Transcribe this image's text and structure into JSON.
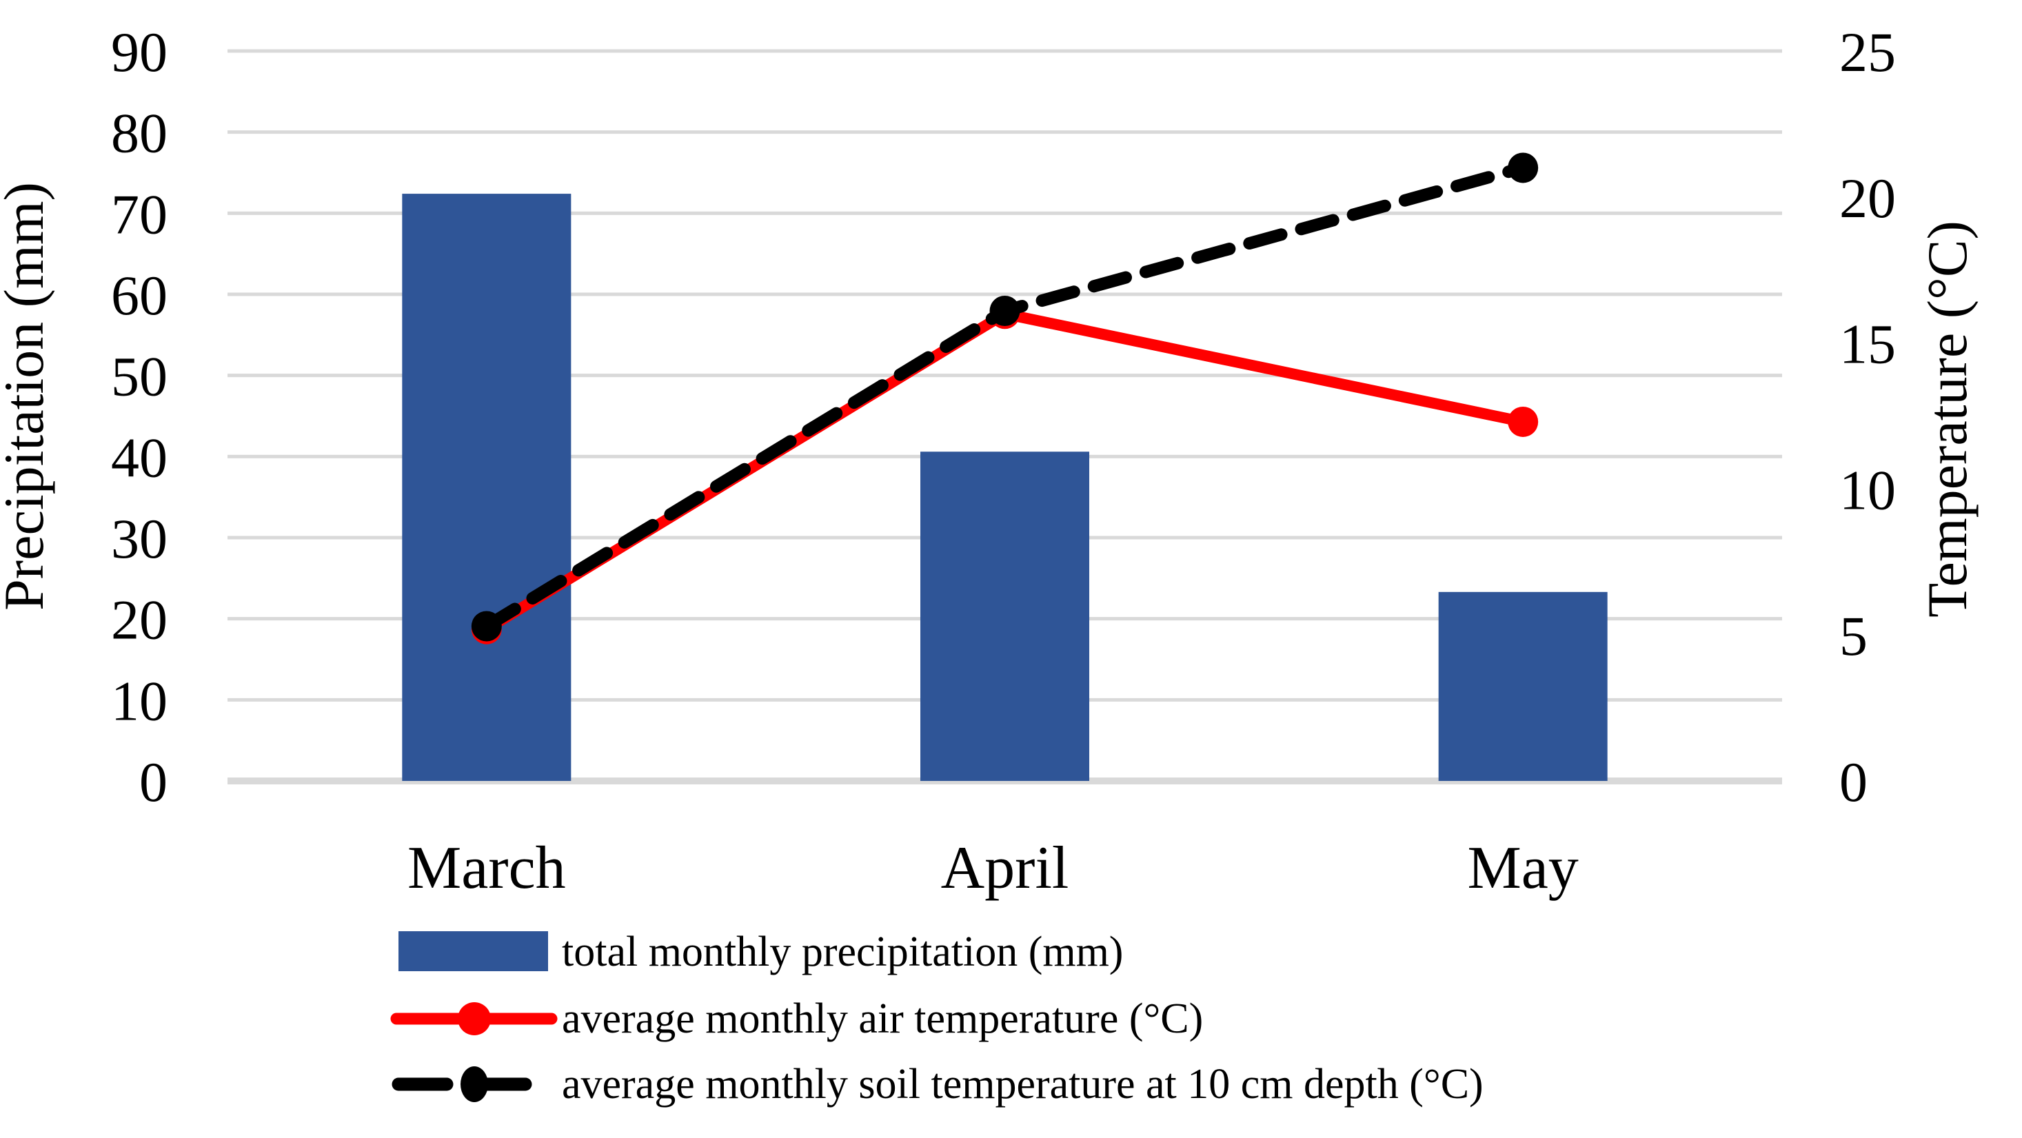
{
  "chart_data": {
    "type": "bar",
    "subtype": "bar-line-combo",
    "categories": [
      "March",
      "April",
      "May"
    ],
    "series": [
      {
        "name": "total monthly precipitation (mm)",
        "type": "bar",
        "axis": "left",
        "color": "#2F5597",
        "values": [
          72.4,
          40.6,
          23.3
        ]
      },
      {
        "name": "average monthly air temperature (°C)",
        "type": "line",
        "axis": "right",
        "color": "#FF0000",
        "marker": "circle",
        "dashed": false,
        "values": [
          5.2,
          16.0,
          12.3
        ]
      },
      {
        "name": "average monthly soil temperature at 10 cm depth (°C)",
        "type": "line",
        "axis": "right",
        "color": "#000000",
        "marker": "circle",
        "dashed": true,
        "values": [
          5.3,
          16.1,
          21.0
        ]
      }
    ],
    "left_axis": {
      "label": "Precipitation (mm)",
      "min": 0,
      "max": 90,
      "ticks": [
        "0",
        "10",
        "20",
        "30",
        "40",
        "50",
        "60",
        "70",
        "80",
        "90"
      ]
    },
    "right_axis": {
      "label": "Temperature (°C)",
      "min": 0,
      "max": 25,
      "ticks": [
        "0",
        "5",
        "10",
        "15",
        "20",
        "25"
      ]
    },
    "grid": true,
    "gridline_color": "#D9D9D9",
    "background_color": "#FFFFFF",
    "legend_position": "bottom-left"
  }
}
